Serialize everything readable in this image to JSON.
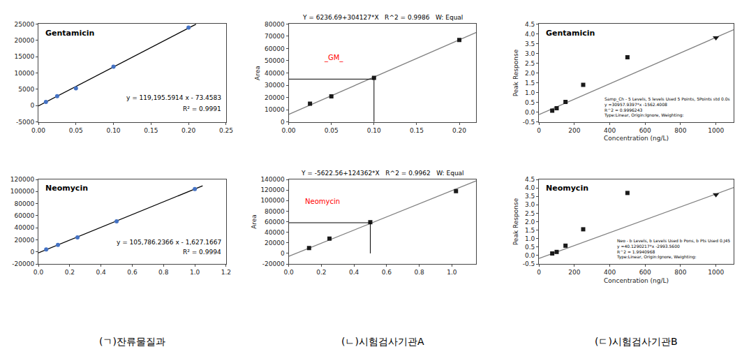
{
  "chart_data": [
    {
      "type": "scatter",
      "title": "Gentamicin",
      "annotations": [
        "y = 119,195.5914 x - 73.4583",
        "R² = 0.9991"
      ],
      "xlim": [
        0.0,
        0.25
      ],
      "xticks": [
        {
          "value": 0,
          "label": "0.00"
        },
        0.05,
        {
          "value": 0.1,
          "label": "0.10"
        },
        0.15,
        {
          "value": 0.2,
          "label": "0.20"
        },
        0.25
      ],
      "ylim": [
        -5000,
        25000
      ],
      "yticks": [
        -5000,
        0,
        5000,
        10000,
        15000,
        20000,
        25000
      ],
      "grid": false,
      "series": [
        {
          "type": "line",
          "color": "#000000",
          "line_style": "solid",
          "x": [
            0.0,
            0.21
          ],
          "values": [
            -73.4583,
            24957.615894
          ]
        },
        {
          "type": "scatter",
          "color": "#4472C4",
          "marker": "circle",
          "x": [
            0.01,
            0.025,
            0.05,
            0.1,
            0.2
          ],
          "values": [
            1119,
            2905,
            5280,
            11950,
            23900
          ]
        }
      ]
    },
    {
      "type": "scatter",
      "title": "Neomycin",
      "annotations": [
        "y = 105,786.2366 x - 1,627.1667",
        "R² = 0.9994"
      ],
      "xlim": [
        0.0,
        1.2
      ],
      "xticks": [
        {
          "value": 0,
          "label": "0.0"
        },
        0.2,
        0.4,
        0.6,
        0.8,
        {
          "value": 1,
          "label": "1.0"
        },
        1.2
      ],
      "ylim": [
        -20000,
        120000
      ],
      "yticks": [
        -20000,
        0,
        20000,
        40000,
        60000,
        80000,
        100000,
        120000
      ],
      "grid": false,
      "series": [
        {
          "type": "line",
          "color": "#000000",
          "line_style": "solid",
          "x": [
            0.0,
            1.05
          ],
          "values": [
            -1627.1667,
            109448.38173
          ]
        },
        {
          "type": "scatter",
          "color": "#4472C4",
          "marker": "circle",
          "x": [
            0.05,
            0.125,
            0.25,
            0.5,
            1.0
          ],
          "values": [
            4000,
            11500,
            24000,
            50500,
            104000
          ]
        }
      ]
    },
    {
      "type": "scatter",
      "title": "Y = 6236.69+304127*X   R^2 = 0.9986   W: Equal",
      "ylabel": "Area",
      "annotations": [
        {
          "text": "_GM_",
          "color": "red"
        }
      ],
      "xlim": [
        0.0,
        0.22
      ],
      "xticks": [
        {
          "value": 0,
          "label": "0.00"
        },
        0.05,
        {
          "value": 0.1,
          "label": "0.10"
        },
        0.15,
        {
          "value": 0.2,
          "label": "0.20"
        }
      ],
      "ylim": [
        0,
        80000
      ],
      "yticks": [
        0,
        10000,
        20000,
        30000,
        40000,
        50000,
        60000,
        70000,
        80000
      ],
      "grid": false,
      "series": [
        {
          "type": "line",
          "color": "gray",
          "line_style": "solid",
          "x": [
            0.0,
            0.22
          ],
          "values": [
            6236.69,
            73144.63
          ]
        },
        {
          "type": "scatter",
          "color": "#1a1a1a",
          "marker": "square",
          "x": [
            0.025,
            0.05,
            0.1,
            0.2
          ],
          "values": [
            15000,
            21000,
            36000,
            67000
          ]
        },
        {
          "type": "line",
          "color": "black",
          "line_style": "solid",
          "x": [
            0,
            0.1
          ],
          "values": [
            35000,
            35000
          ]
        },
        {
          "type": "line",
          "color": "black",
          "line_style": "solid",
          "x": [
            0.1,
            0.1
          ],
          "values": [
            0,
            35000
          ]
        }
      ]
    },
    {
      "type": "scatter",
      "title": "Y = -5622.56+124362*X   R^2 = 0.9962   W: Equal",
      "ylabel": "Area",
      "annotations": [
        {
          "text": "Neomycin",
          "color": "red"
        }
      ],
      "xlim": [
        0.0,
        1.15
      ],
      "xticks": [
        {
          "value": 0,
          "label": "0.0"
        },
        0.2,
        0.4,
        0.6,
        0.8,
        {
          "value": 1,
          "label": "1.0"
        }
      ],
      "ylim": [
        -20000,
        140000
      ],
      "yticks": [
        -20000,
        0,
        20000,
        40000,
        60000,
        80000,
        100000,
        120000,
        140000
      ],
      "grid": false,
      "series": [
        {
          "type": "line",
          "color": "gray",
          "line_style": "solid",
          "x": [
            0.0,
            1.15
          ],
          "values": [
            -5622.56,
            137393.74
          ]
        },
        {
          "type": "scatter",
          "color": "#1a1a1a",
          "marker": "square",
          "x": [
            0.125,
            0.25,
            0.5,
            1.025
          ],
          "values": [
            10000,
            28000,
            59000,
            118000
          ]
        },
        {
          "type": "line",
          "color": "black",
          "line_style": "solid",
          "x": [
            0,
            0.5
          ],
          "values": [
            58000,
            58000
          ]
        },
        {
          "type": "line",
          "color": "black",
          "line_style": "solid",
          "x": [
            0.5,
            0.5
          ],
          "values": [
            0,
            58000
          ]
        }
      ]
    },
    {
      "type": "scatter",
      "title": "Gentamicin",
      "xlabel": "Concentration (ng/L)",
      "ylabel": "Peak Response",
      "annotations": [
        "Samp_Ch - 5 Levels, 5 levels Used 5 Points, 5Points std 0.0s\ny =30957.9397*x -1562.4008\nR^2 = 0.9996243\nType:Linear, Origin:Ignore, Weighting:"
      ],
      "xlim": [
        0,
        1100
      ],
      "xticks": [
        0,
        200,
        400,
        600,
        800,
        1000
      ],
      "ylim": [
        -0.5,
        4.5
      ],
      "yticks": [
        -0.5,
        {
          "value": 0,
          "label": "0.0"
        },
        0.5,
        {
          "value": 1,
          "label": "1.0"
        },
        1.5,
        {
          "value": 2,
          "label": "2.0"
        },
        2.5,
        {
          "value": 3,
          "label": "3.0"
        },
        3.5,
        {
          "value": 4,
          "label": "4.0"
        },
        4.5
      ],
      "grid": false,
      "series": [
        {
          "type": "line",
          "color": "gray",
          "line_style": "solid",
          "x": [
            0,
            1100
          ],
          "values": [
            -0.12,
            4.2085
          ]
        },
        {
          "type": "scatter",
          "color": "#1a1a1a",
          "marker": "square",
          "x": [
            75,
            100,
            150,
            250,
            500
          ],
          "values": [
            0.08,
            0.2,
            0.52,
            1.4,
            2.8
          ]
        },
        {
          "type": "scatter",
          "color": "#1a1a1a",
          "marker": "triangle-down",
          "x": [
            1000
          ],
          "values": [
            3.8
          ]
        }
      ]
    },
    {
      "type": "scatter",
      "title": "Neomycin",
      "xlabel": "Concentration (ng/L)",
      "ylabel": "Peak Response",
      "annotations": [
        "Neo - b Levels, b Levels Used b Pons, b Pts Used 0.J45\ny =40.1290217*x -2993.5600\nR^2 = 1.9940968\nType:Linear, Origin:Ignore, Weighting:"
      ],
      "xlim": [
        0,
        1100
      ],
      "xticks": [
        0,
        200,
        400,
        600,
        800,
        1000
      ],
      "ylim": [
        -0.5,
        4.5
      ],
      "yticks": [
        -0.5,
        {
          "value": 0,
          "label": "0.0"
        },
        0.5,
        {
          "value": 1,
          "label": "1.0"
        },
        1.5,
        {
          "value": 2,
          "label": "2.0"
        },
        2.5,
        {
          "value": 3,
          "label": "3.0"
        },
        3.5,
        {
          "value": 4,
          "label": "4.0"
        },
        4.5
      ],
      "grid": false,
      "series": [
        {
          "type": "line",
          "color": "gray",
          "line_style": "solid",
          "x": [
            0,
            1100
          ],
          "values": [
            -0.18,
            4.022
          ]
        },
        {
          "type": "scatter",
          "color": "#1a1a1a",
          "marker": "square",
          "x": [
            75,
            100,
            150,
            250,
            500
          ],
          "values": [
            0.12,
            0.21,
            0.58,
            1.55,
            3.7
          ]
        },
        {
          "type": "scatter",
          "color": "#1a1a1a",
          "marker": "triangle-down",
          "x": [
            1000
          ],
          "values": [
            3.6
          ]
        }
      ]
    }
  ],
  "annotations": [
    "(ㄱ)잔류물질과",
    "(ㄴ)시험검사기관A",
    "(ㄷ)시험검사기관B"
  ]
}
